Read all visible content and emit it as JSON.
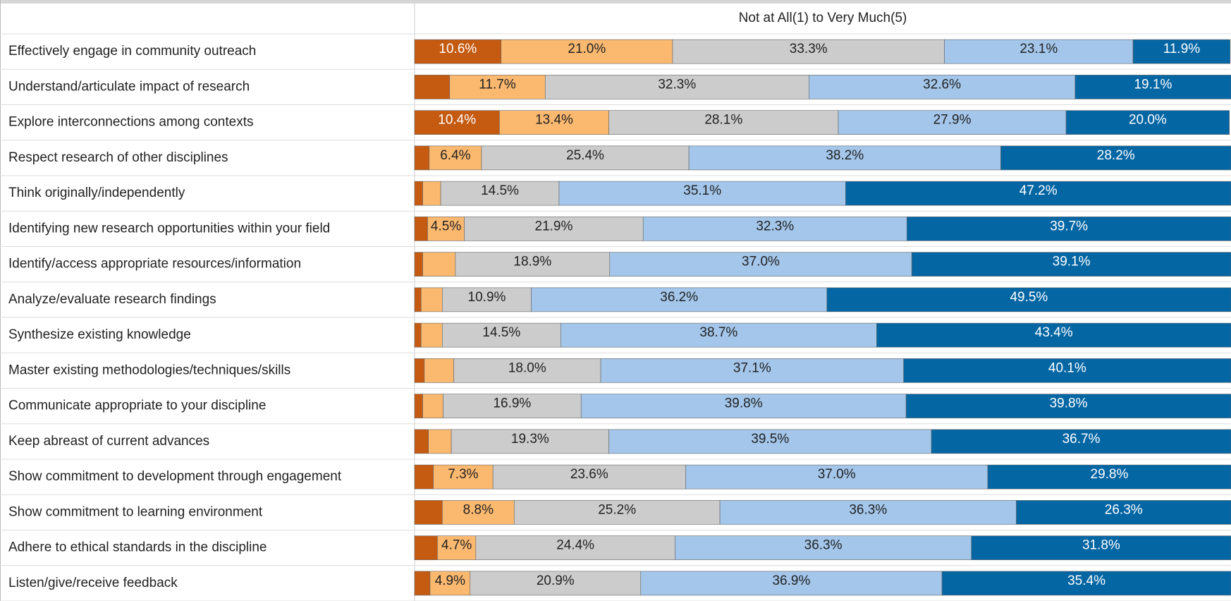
{
  "chart_data": {
    "type": "stacked-bar-horizontal",
    "title": "Not at All(1) to Very Much(5)",
    "categories": [
      "Effectively engage in community outreach",
      "Understand/articulate impact of research",
      "Explore interconnections among contexts",
      "Respect research of other disciplines",
      "Think originally/independently",
      "Identifying new research opportunities within your field",
      "Identify/access appropriate resources/information",
      "Analyze/evaluate research findings",
      "Synthesize existing knowledge",
      "Master existing methodologies/techniques/skills",
      "Communicate appropriate to your discipline",
      "Keep abreast of current advances",
      "Show commitment to development through engagement",
      "Show commitment to learning environment",
      "Adhere to ethical standards in the discipline",
      "Listen/give/receive feedback"
    ],
    "xlim": [
      0,
      100
    ],
    "series": [
      {
        "color": "#c55a11",
        "values": [
          10.6,
          4.3,
          10.4,
          1.8,
          1.0,
          1.6,
          1.0,
          0.8,
          0.8,
          1.2,
          1.0,
          1.7,
          2.3,
          3.4,
          2.8,
          1.9
        ],
        "value_labels": [
          "10.6%",
          null,
          "10.4%",
          null,
          null,
          null,
          null,
          null,
          null,
          null,
          null,
          null,
          null,
          null,
          null,
          null
        ]
      },
      {
        "color": "#fbb970",
        "values": [
          21.0,
          11.7,
          13.4,
          6.4,
          2.2,
          4.5,
          4.0,
          2.6,
          2.6,
          3.6,
          2.5,
          2.8,
          7.3,
          8.8,
          4.7,
          4.9
        ],
        "value_labels": [
          "21.0%",
          "11.7%",
          "13.4%",
          "6.4%",
          null,
          "4.5%",
          null,
          null,
          null,
          null,
          null,
          null,
          "7.3%",
          "8.8%",
          "4.7%",
          "4.9%"
        ]
      },
      {
        "color": "#cccccc",
        "values": [
          33.3,
          32.3,
          28.1,
          25.4,
          14.5,
          21.9,
          18.9,
          10.9,
          14.5,
          18.0,
          16.9,
          19.3,
          23.6,
          25.2,
          24.4,
          20.9
        ],
        "value_labels": [
          "33.3%",
          "32.3%",
          "28.1%",
          "25.4%",
          "14.5%",
          "21.9%",
          "18.9%",
          "10.9%",
          "14.5%",
          "18.0%",
          "16.9%",
          "19.3%",
          "23.6%",
          "25.2%",
          "24.4%",
          "20.9%"
        ]
      },
      {
        "color": "#a3c6ea",
        "values": [
          23.1,
          32.6,
          27.9,
          38.2,
          35.1,
          32.3,
          37.0,
          36.2,
          38.7,
          37.1,
          39.8,
          39.5,
          37.0,
          36.3,
          36.3,
          36.9
        ],
        "value_labels": [
          "23.1%",
          "32.6%",
          "27.9%",
          "38.2%",
          "35.1%",
          "32.3%",
          "37.0%",
          "36.2%",
          "38.7%",
          "37.1%",
          "39.8%",
          "39.5%",
          "37.0%",
          "36.3%",
          "36.3%",
          "36.9%"
        ]
      },
      {
        "color": "#0566a4",
        "values": [
          11.9,
          19.1,
          20.0,
          28.2,
          47.2,
          39.7,
          39.1,
          49.5,
          43.4,
          40.1,
          39.8,
          36.7,
          29.8,
          26.3,
          31.8,
          35.4
        ],
        "value_labels": [
          "11.9%",
          "19.1%",
          "20.0%",
          "28.2%",
          "47.2%",
          "39.7%",
          "39.1%",
          "49.5%",
          "43.4%",
          "40.1%",
          "39.8%",
          "36.7%",
          "29.8%",
          "26.3%",
          "31.8%",
          "35.4%"
        ]
      }
    ]
  }
}
